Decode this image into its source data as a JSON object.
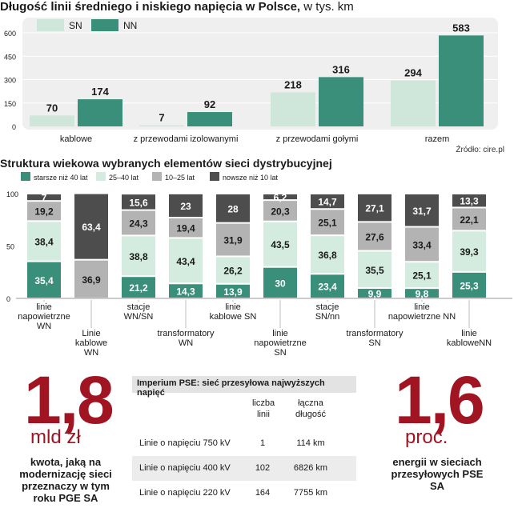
{
  "chart_data": [
    {
      "type": "bar",
      "title": "Długość linii średniego i niskiego napięcia w Polsce,",
      "title_unit": "w tys. km",
      "categories": [
        "kablowe",
        "z przewodami izolowanymi",
        "z przewodami gołymi",
        "razem"
      ],
      "series": [
        {
          "name": "SN",
          "values": [
            70,
            7,
            218,
            294
          ],
          "color": "#cfe6da"
        },
        {
          "name": "NN",
          "values": [
            174,
            92,
            316,
            583
          ],
          "color": "#3a8f7a"
        }
      ],
      "ylim": [
        0,
        600
      ],
      "yticks": [
        "0",
        "150",
        "300",
        "450",
        "600"
      ],
      "source": "Źródło: cire.pl"
    },
    {
      "type": "bar",
      "stacked": true,
      "title": "Struktura wiekowa wybranych elementów sieci dystrybucyjnej",
      "categories": [
        [
          "linie",
          "napowietrzne",
          "WN"
        ],
        [
          "Linie",
          "kablowe",
          "WN"
        ],
        [
          "stacje",
          "WN/SN"
        ],
        [
          "transformatory",
          "WN"
        ],
        [
          "linie",
          "kablowe SN"
        ],
        [
          "linie",
          "napowietrzne",
          "SN"
        ],
        [
          "stacje",
          "SN/nn"
        ],
        [
          "transformatory",
          "SN"
        ],
        [
          "linie",
          "napowietrzne NN"
        ],
        [
          "linie",
          "kabloweNN"
        ]
      ],
      "series": [
        {
          "name": "starsze niż 40 lat",
          "color": "#3a8f7a",
          "values": [
            35.4,
            0,
            21.2,
            14.3,
            13.9,
            30,
            23.4,
            9.9,
            9.8,
            25.3
          ]
        },
        {
          "name": "25–40 lat",
          "color": "#d4ebe0",
          "values": [
            38.4,
            0,
            38.8,
            43.4,
            26.2,
            43.5,
            36.8,
            35.5,
            25.1,
            39.3
          ]
        },
        {
          "name": "10–25 lat",
          "color": "#b3b3b3",
          "values": [
            19.2,
            36.9,
            24.3,
            19.4,
            31.9,
            20.3,
            25.1,
            27.6,
            33.4,
            22.1
          ]
        },
        {
          "name": "nowsze niż 10 lat",
          "color": "#4d4d4d",
          "values": [
            7,
            63.4,
            15.6,
            23,
            28,
            6.2,
            14.7,
            27.1,
            31.7,
            13.3
          ]
        }
      ],
      "labels": [
        [
          "35,4",
          "38,4",
          "19,2",
          "7"
        ],
        [
          "",
          "",
          "36,9",
          "63,4"
        ],
        [
          "21,2",
          "38,8",
          "24,3",
          "15,6"
        ],
        [
          "14,3",
          "43,4",
          "19,4",
          "23"
        ],
        [
          "13,9",
          "26,2",
          "31,9",
          "28"
        ],
        [
          "30",
          "43,5",
          "20,3",
          "6,2"
        ],
        [
          "23,4",
          "36,8",
          "25,1",
          "14,7"
        ],
        [
          "9,9",
          "35,5",
          "27,6",
          "27,1"
        ],
        [
          "9,8",
          "25,1",
          "33,4",
          "31,7"
        ],
        [
          "25,3",
          "39,3",
          "22,1",
          "13,3"
        ]
      ],
      "ylim": [
        0,
        100
      ],
      "yticks": [
        "0",
        "50",
        "100"
      ]
    }
  ],
  "left_callout": {
    "value": "1,8",
    "unit": "mld zł",
    "description": "kwota, jaką na modernizację sieci przeznaczy w tym roku PGE SA"
  },
  "right_callout": {
    "value": "1,6",
    "unit": "proc.",
    "description": "energii w sieciach przesyłowych PSE SA"
  },
  "table": {
    "title": "Imperium PSE: sieć przesyłowa najwyższych napięć",
    "col2_header": "liczba linii",
    "col3_header": "łączna długość",
    "rows": [
      {
        "name": "Linie o napięciu 750 kV",
        "count": "1",
        "length": "114 km"
      },
      {
        "name": "Linie o napięciu 400 kV",
        "count": "102",
        "length": "6826 km"
      },
      {
        "name": "Linie o napięciu 220 kV",
        "count": "164",
        "length": "7755 km"
      }
    ]
  }
}
